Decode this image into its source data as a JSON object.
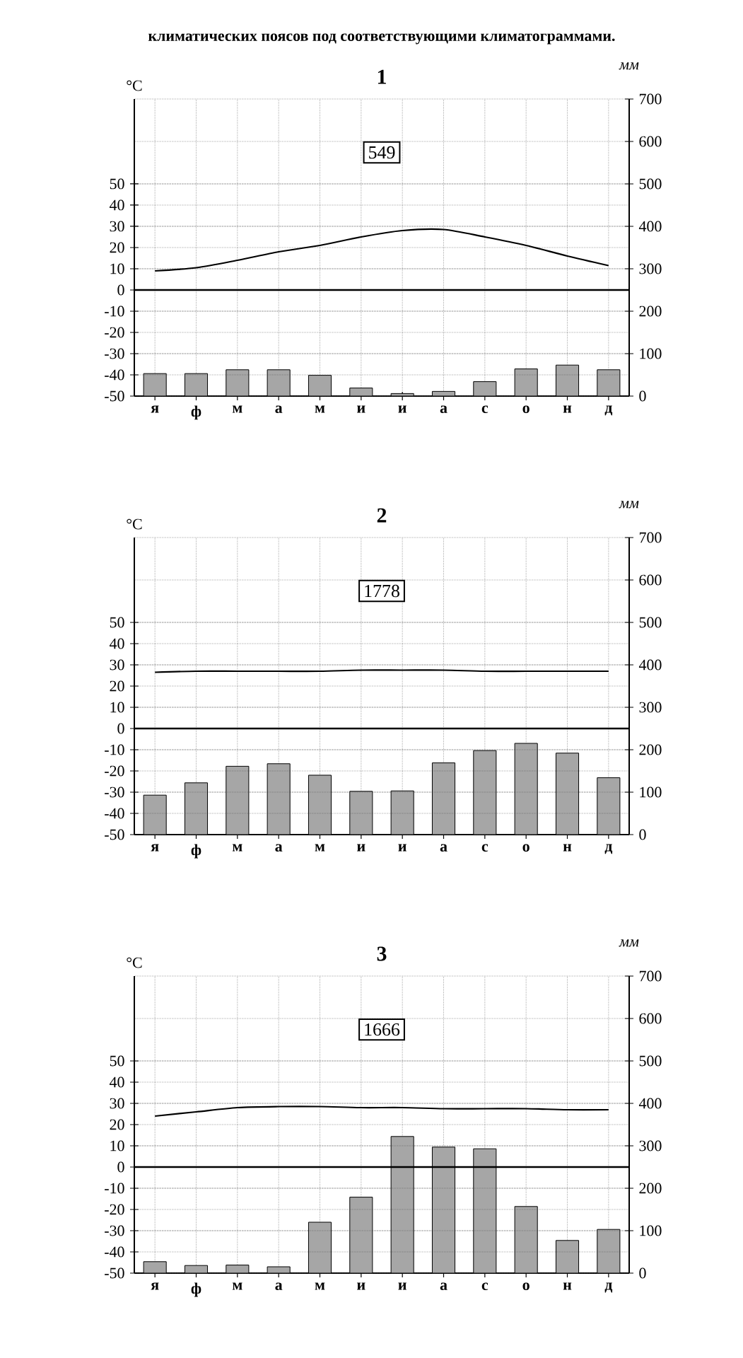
{
  "chart_data": [
    {
      "type": "bar",
      "title": "1",
      "ylabel": "°C",
      "y2label": "мм",
      "categories": [
        "я",
        "ф",
        "м",
        "а",
        "м",
        "и",
        "и",
        "а",
        "с",
        "о",
        "н",
        "д"
      ],
      "series": [
        {
          "axis": "y2",
          "color": "#a6a6a6",
          "values": [
            53,
            53,
            62,
            62,
            49,
            19,
            6,
            11,
            34,
            64,
            73,
            62
          ]
        },
        {
          "type": "line",
          "axis": "y",
          "color": "#000000",
          "values": [
            9,
            10.5,
            14,
            18,
            21,
            25,
            28,
            28.5,
            25,
            21,
            16,
            11.5
          ]
        }
      ],
      "ylim": [
        -50,
        90
      ],
      "yticks": [
        -50,
        -40,
        -30,
        -20,
        -10,
        0,
        10,
        20,
        30,
        40,
        50
      ],
      "y2lim": [
        0,
        700
      ],
      "y2ticks": [
        0,
        100,
        200,
        300,
        400,
        500,
        600,
        700
      ],
      "grid": true,
      "ref_lines": [
        {
          "axis": "y",
          "value": 0
        }
      ],
      "annotations": [
        "климатических поясов под соответствующими климатограммами.",
        "549"
      ]
    },
    {
      "type": "bar",
      "title": "2",
      "ylabel": "°C",
      "y2label": "мм",
      "categories": [
        "я",
        "ф",
        "м",
        "а",
        "м",
        "и",
        "и",
        "а",
        "с",
        "о",
        "н",
        "д"
      ],
      "series": [
        {
          "axis": "y2",
          "color": "#a6a6a6",
          "values": [
            93,
            122,
            161,
            167,
            140,
            102,
            103,
            169,
            198,
            215,
            192,
            134
          ]
        },
        {
          "type": "line",
          "axis": "y",
          "color": "#000000",
          "values": [
            26.5,
            27,
            27,
            27,
            27,
            27.5,
            27.5,
            27.5,
            27,
            27,
            27,
            27
          ]
        }
      ],
      "ylim": [
        -50,
        90
      ],
      "yticks": [
        -50,
        -40,
        -30,
        -20,
        -10,
        0,
        10,
        20,
        30,
        40,
        50
      ],
      "y2lim": [
        0,
        700
      ],
      "y2ticks": [
        0,
        100,
        200,
        300,
        400,
        500,
        600,
        700
      ],
      "grid": true,
      "ref_lines": [
        {
          "axis": "y",
          "value": 0
        }
      ],
      "annotations": [
        "1778"
      ]
    },
    {
      "type": "bar",
      "title": "3",
      "ylabel": "°C",
      "y2label": "мм",
      "categories": [
        "я",
        "ф",
        "м",
        "а",
        "м",
        "и",
        "и",
        "а",
        "с",
        "о",
        "н",
        "д"
      ],
      "series": [
        {
          "axis": "y2",
          "color": "#a6a6a6",
          "values": [
            27,
            18,
            19,
            15,
            120,
            179,
            322,
            297,
            293,
            157,
            77,
            103
          ]
        },
        {
          "type": "line",
          "axis": "y",
          "color": "#000000",
          "values": [
            24,
            26,
            28,
            28.5,
            28.5,
            28,
            28,
            27.5,
            27.5,
            27.5,
            27,
            27
          ]
        }
      ],
      "ylim": [
        -50,
        90
      ],
      "yticks": [
        -50,
        -40,
        -30,
        -20,
        -10,
        0,
        10,
        20,
        30,
        40,
        50
      ],
      "y2lim": [
        0,
        700
      ],
      "y2ticks": [
        0,
        100,
        200,
        300,
        400,
        500,
        600,
        700
      ],
      "grid": true,
      "ref_lines": [
        {
          "axis": "y",
          "value": 0
        }
      ],
      "annotations": [
        "1666"
      ]
    }
  ]
}
